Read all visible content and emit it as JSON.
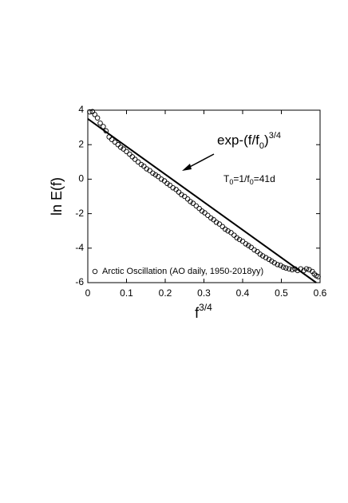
{
  "chart_data": {
    "type": "scatter",
    "xlabel": [
      "f",
      "3/4"
    ],
    "ylabel": "ln E(f)",
    "xlim": [
      0,
      0.6
    ],
    "ylim": [
      -6,
      4
    ],
    "xticks": [
      0,
      0.1,
      0.2,
      0.3,
      0.4,
      0.5,
      0.6
    ],
    "yticks": [
      4,
      2,
      0,
      -2,
      -4,
      -6
    ],
    "series": [
      {
        "name": "Arctic Oscillation (AO daily, 1950-2018yy)",
        "color": "#000000",
        "x": [
          0.005,
          0.012,
          0.018,
          0.025,
          0.032,
          0.04,
          0.047,
          0.055,
          0.062,
          0.07,
          0.078,
          0.085,
          0.092,
          0.1,
          0.108,
          0.115,
          0.122,
          0.13,
          0.138,
          0.145,
          0.152,
          0.16,
          0.168,
          0.175,
          0.182,
          0.19,
          0.198,
          0.205,
          0.212,
          0.22,
          0.228,
          0.235,
          0.242,
          0.25,
          0.258,
          0.265,
          0.272,
          0.28,
          0.288,
          0.295,
          0.302,
          0.31,
          0.318,
          0.325,
          0.332,
          0.34,
          0.348,
          0.355,
          0.362,
          0.37,
          0.378,
          0.385,
          0.392,
          0.4,
          0.408,
          0.415,
          0.422,
          0.43,
          0.438,
          0.445,
          0.452,
          0.46,
          0.468,
          0.475,
          0.482,
          0.49,
          0.498,
          0.505,
          0.512,
          0.52,
          0.528,
          0.535,
          0.542,
          0.55,
          0.558,
          0.565,
          0.572,
          0.58,
          0.585,
          0.59,
          0.595
        ],
        "values": [
          3.9,
          3.92,
          3.75,
          3.55,
          3.25,
          3.05,
          2.8,
          2.45,
          2.3,
          2.15,
          2.0,
          1.85,
          1.75,
          1.6,
          1.45,
          1.3,
          1.15,
          1.0,
          0.85,
          0.75,
          0.6,
          0.5,
          0.35,
          0.25,
          0.15,
          0.0,
          -0.1,
          -0.25,
          -0.35,
          -0.5,
          -0.6,
          -0.75,
          -0.9,
          -1.0,
          -1.15,
          -1.3,
          -1.4,
          -1.55,
          -1.7,
          -1.85,
          -1.95,
          -2.1,
          -2.25,
          -2.35,
          -2.5,
          -2.6,
          -2.75,
          -2.9,
          -3.0,
          -3.1,
          -3.25,
          -3.4,
          -3.5,
          -3.6,
          -3.75,
          -3.85,
          -3.95,
          -4.1,
          -4.2,
          -4.35,
          -4.45,
          -4.55,
          -4.65,
          -4.75,
          -4.85,
          -4.95,
          -5.0,
          -5.1,
          -5.15,
          -5.2,
          -5.25,
          -5.2,
          -5.3,
          -5.2,
          -5.3,
          -5.2,
          -5.25,
          -5.35,
          -5.5,
          -5.6,
          -5.65
        ]
      }
    ],
    "fit": {
      "x": [
        0,
        0.59
      ],
      "values": [
        3.5,
        -6
      ],
      "color": "#000000"
    },
    "annotations": [
      [
        "exp-(f/f",
        "0",
        ")",
        "3/4"
      ],
      [
        "T",
        "0",
        "=1/f",
        "0",
        "=41d"
      ]
    ],
    "legend": "lower left"
  }
}
